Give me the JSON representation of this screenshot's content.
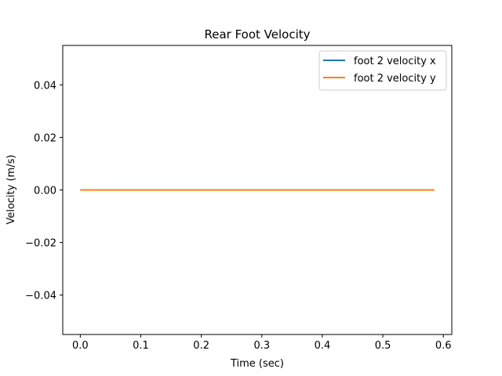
{
  "chart_data": {
    "type": "line",
    "title": "Rear Foot Velocity",
    "xlabel": "Time (sec)",
    "ylabel": "Velocity (m/s)",
    "xlim": [
      -0.029,
      0.614
    ],
    "ylim": [
      -0.055,
      0.055
    ],
    "x_ticks": [
      0.0,
      0.1,
      0.2,
      0.3,
      0.4,
      0.5,
      0.6
    ],
    "x_tick_labels": [
      "0.0",
      "0.1",
      "0.2",
      "0.3",
      "0.4",
      "0.5",
      "0.6"
    ],
    "y_ticks": [
      0.04,
      0.02,
      0.0,
      -0.02,
      -0.04
    ],
    "y_tick_labels": [
      "0.04",
      "0.02",
      "0.00",
      "−0.02",
      "−0.04"
    ],
    "grid": false,
    "legend_position": "top-right",
    "series": [
      {
        "name": "foot 2 velocity x",
        "color": "#1f77b4",
        "x": [
          0.0,
          0.585
        ],
        "y": [
          0.0,
          0.0
        ]
      },
      {
        "name": "foot 2 velocity y",
        "color": "#ff7f0e",
        "x": [
          0.0,
          0.585
        ],
        "y": [
          0.0,
          0.0
        ]
      }
    ]
  }
}
